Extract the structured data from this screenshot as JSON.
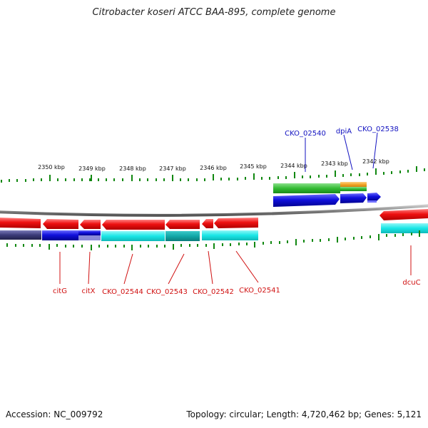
{
  "title": "Citrobacter koseri ATCC BAA-895, complete genome",
  "footer": {
    "accession": "Accession: NC_009792",
    "stats": "Topology: circular; Length: 4,720,462 bp; Genes: 5,121"
  },
  "ticks": [
    "2350 kbp",
    "2349 kbp",
    "2348 kbp",
    "2347 kbp",
    "2346 kbp",
    "2345 kbp",
    "2344 kbp",
    "2343 kbp",
    "2342 kbp"
  ],
  "forward_genes": [
    "CKO_02540",
    "dpiA",
    "CKO_02538"
  ],
  "reverse_genes": [
    "citG",
    "citX",
    "CKO_02544",
    "CKO_02543",
    "CKO_02542",
    "CKO_02541",
    "dcuC"
  ],
  "colors": {
    "forward_label": "#1010c0",
    "reverse_label": "#d01010",
    "cds_reverse": "#ee1111",
    "cds_forward": "#1111dd",
    "ortholog_cyan": "#19e6e6",
    "ortholog_teal": "#12a8a8",
    "ortholog_navy": "#3a3a78",
    "ortholog_green": "#33bb33",
    "ortholog_orange": "#f0a020",
    "tick_green": "#118811",
    "backbone": "#888888"
  }
}
